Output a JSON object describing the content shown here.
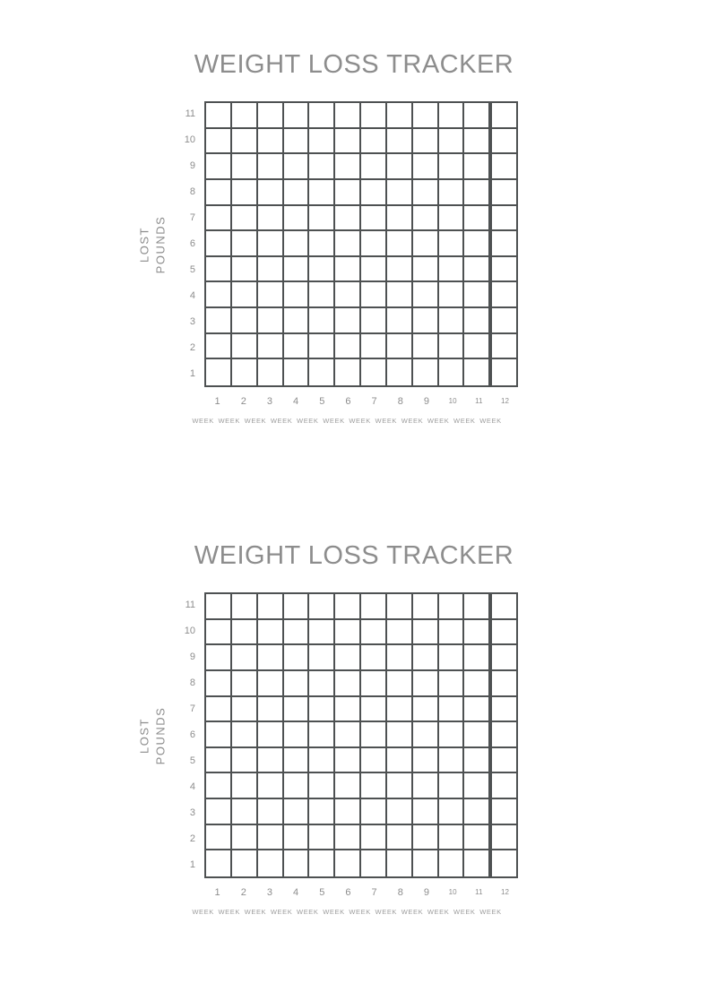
{
  "page": {
    "background": "#ffffff"
  },
  "colors": {
    "title_text": "#8d8d8d",
    "grid_line": "#4e5152",
    "tick_text": "#8d8d8d",
    "week_text": "#9c9c9c"
  },
  "chart_data": [
    {
      "type": "table",
      "title": "WEIGHT LOSS TRACKER",
      "ylabel": "LOST POUNDS",
      "ylabel_lines": [
        "LOST",
        "POUNDS"
      ],
      "rows": 11,
      "cols": 12,
      "y_ticks": [
        11,
        10,
        9,
        8,
        7,
        6,
        5,
        4,
        3,
        2,
        1
      ],
      "x_ticks": [
        1,
        2,
        3,
        4,
        5,
        6,
        7,
        8,
        9,
        10,
        11,
        12
      ],
      "x_unit_label": "WEEK",
      "values": [],
      "grid": "on",
      "legend": "none"
    },
    {
      "type": "table",
      "title": "WEIGHT LOSS TRACKER",
      "ylabel": "LOST POUNDS",
      "ylabel_lines": [
        "LOST",
        "POUNDS"
      ],
      "rows": 11,
      "cols": 12,
      "y_ticks": [
        11,
        10,
        9,
        8,
        7,
        6,
        5,
        4,
        3,
        2,
        1
      ],
      "x_ticks": [
        1,
        2,
        3,
        4,
        5,
        6,
        7,
        8,
        9,
        10,
        11,
        12
      ],
      "x_unit_label": "WEEK",
      "values": [],
      "grid": "on",
      "legend": "none"
    }
  ]
}
